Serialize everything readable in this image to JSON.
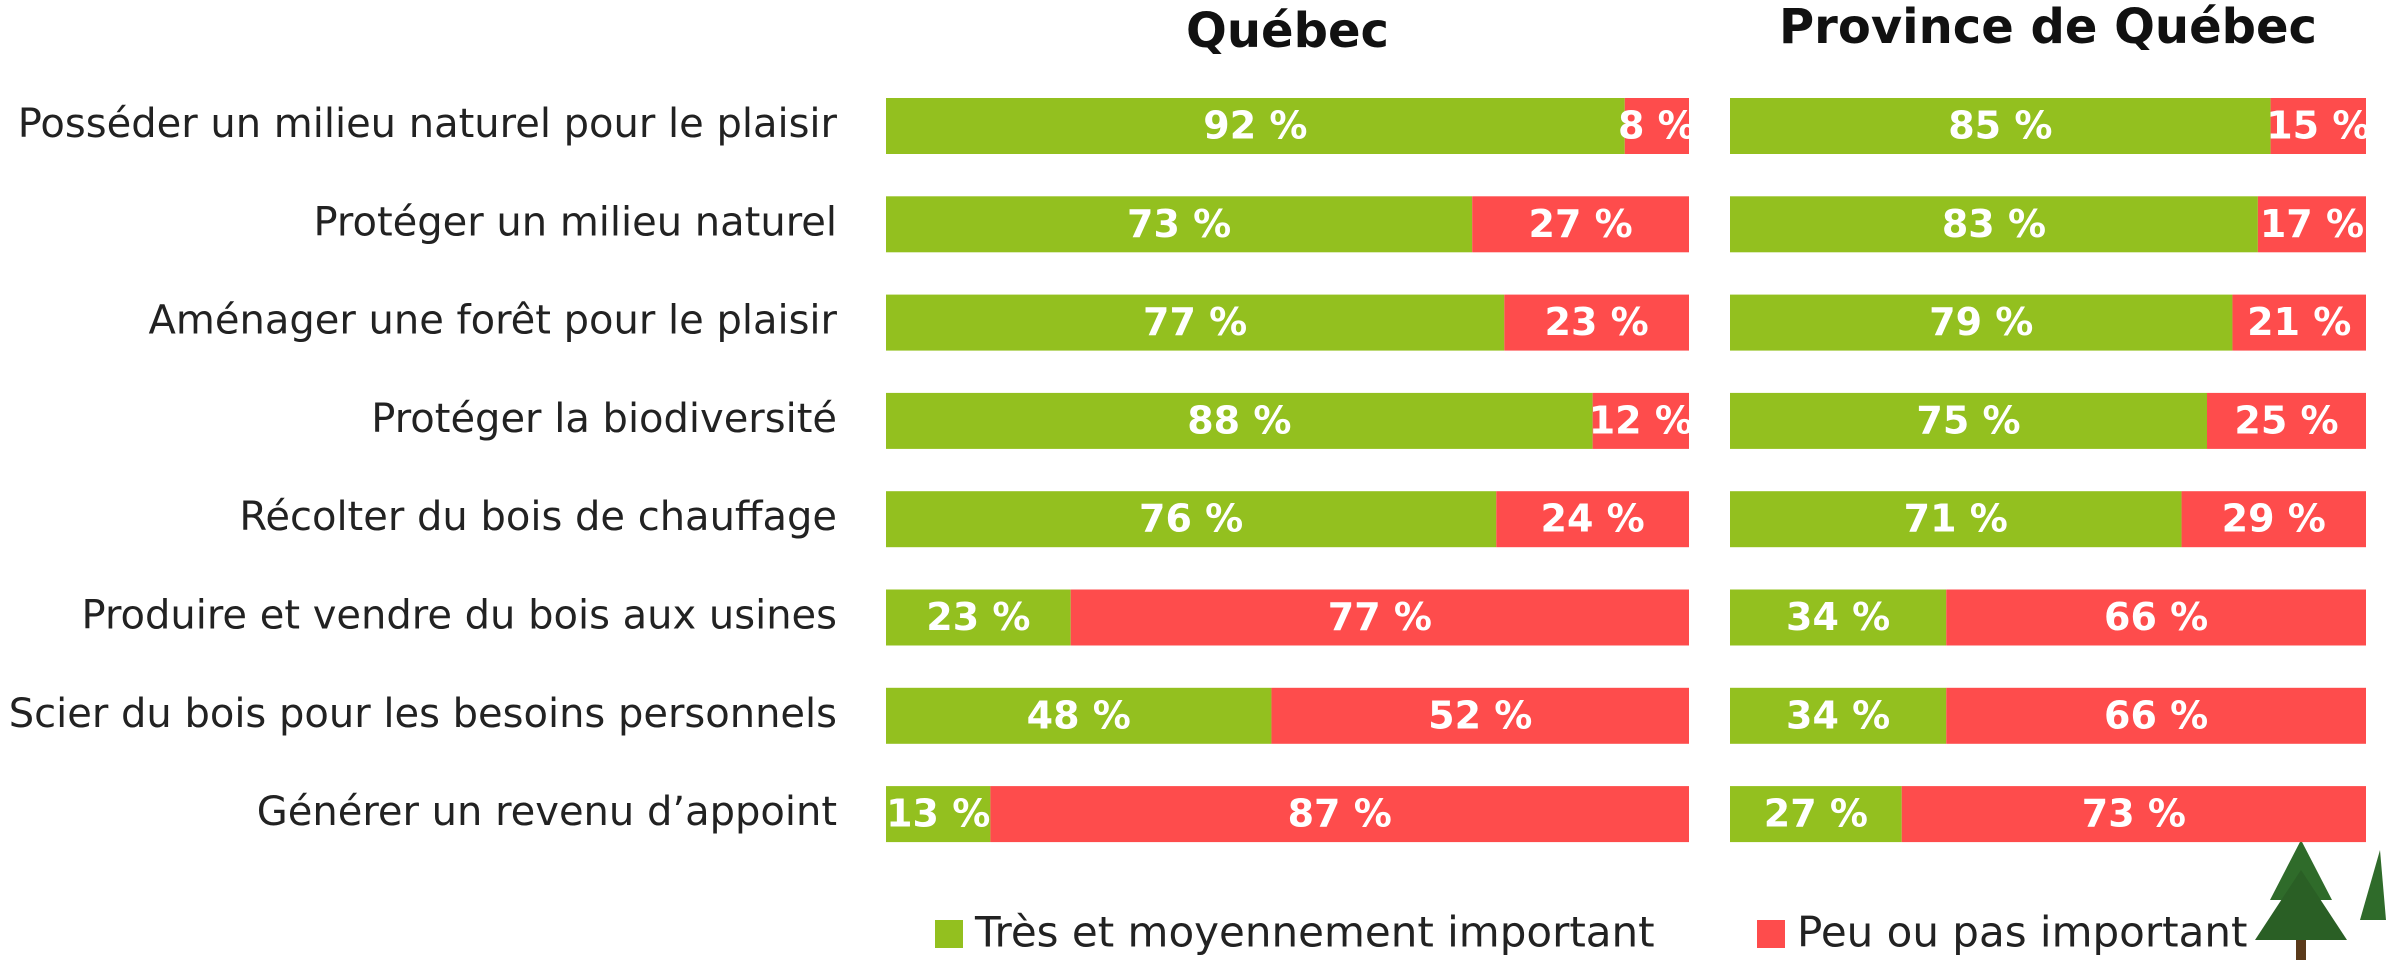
{
  "chart_data": {
    "type": "bar",
    "orientation": "horizontal",
    "stacked": true,
    "xlim": [
      0,
      100
    ],
    "categories": [
      "Posséder un milieu naturel pour le plaisir",
      "Protéger un milieu naturel",
      "Aménager une forêt pour le plaisir",
      "Protéger la biodiversité",
      "Récolter du bois de chauffage",
      "Produire et vendre du bois aux usines",
      "Scier du bois pour les besoins personnels",
      "Générer un revenu d’appoint"
    ],
    "series": [
      {
        "name": "Très et moyennement important",
        "color": "#93c01f"
      },
      {
        "name": "Peu ou pas important",
        "color": "#fe4c4c"
      }
    ],
    "panels": [
      {
        "title": "Québec",
        "values": [
          [
            92,
            73,
            77,
            88,
            76,
            23,
            48,
            13
          ],
          [
            8,
            27,
            23,
            12,
            24,
            77,
            52,
            87
          ]
        ],
        "value_labels": [
          [
            "92 %",
            "73 %",
            "77 %",
            "88 %",
            "76 %",
            "23 %",
            "48 %",
            "13 %"
          ],
          [
            "8 %",
            "27 %",
            "23 %",
            "12 %",
            "24 %",
            "77 %",
            "52 %",
            "87 %"
          ]
        ]
      },
      {
        "title": "Province de Québec",
        "values": [
          [
            85,
            83,
            79,
            75,
            71,
            34,
            34,
            27
          ],
          [
            15,
            17,
            21,
            25,
            29,
            66,
            66,
            73
          ]
        ],
        "value_labels": [
          [
            "85 %",
            "83 %",
            "79 %",
            "75 %",
            "71 %",
            "34 %",
            "34 %",
            "27 %"
          ],
          [
            "15 %",
            "17 %",
            "21 %",
            "25 %",
            "29 %",
            "66 %",
            "66 %",
            "73 %"
          ]
        ]
      }
    ]
  }
}
